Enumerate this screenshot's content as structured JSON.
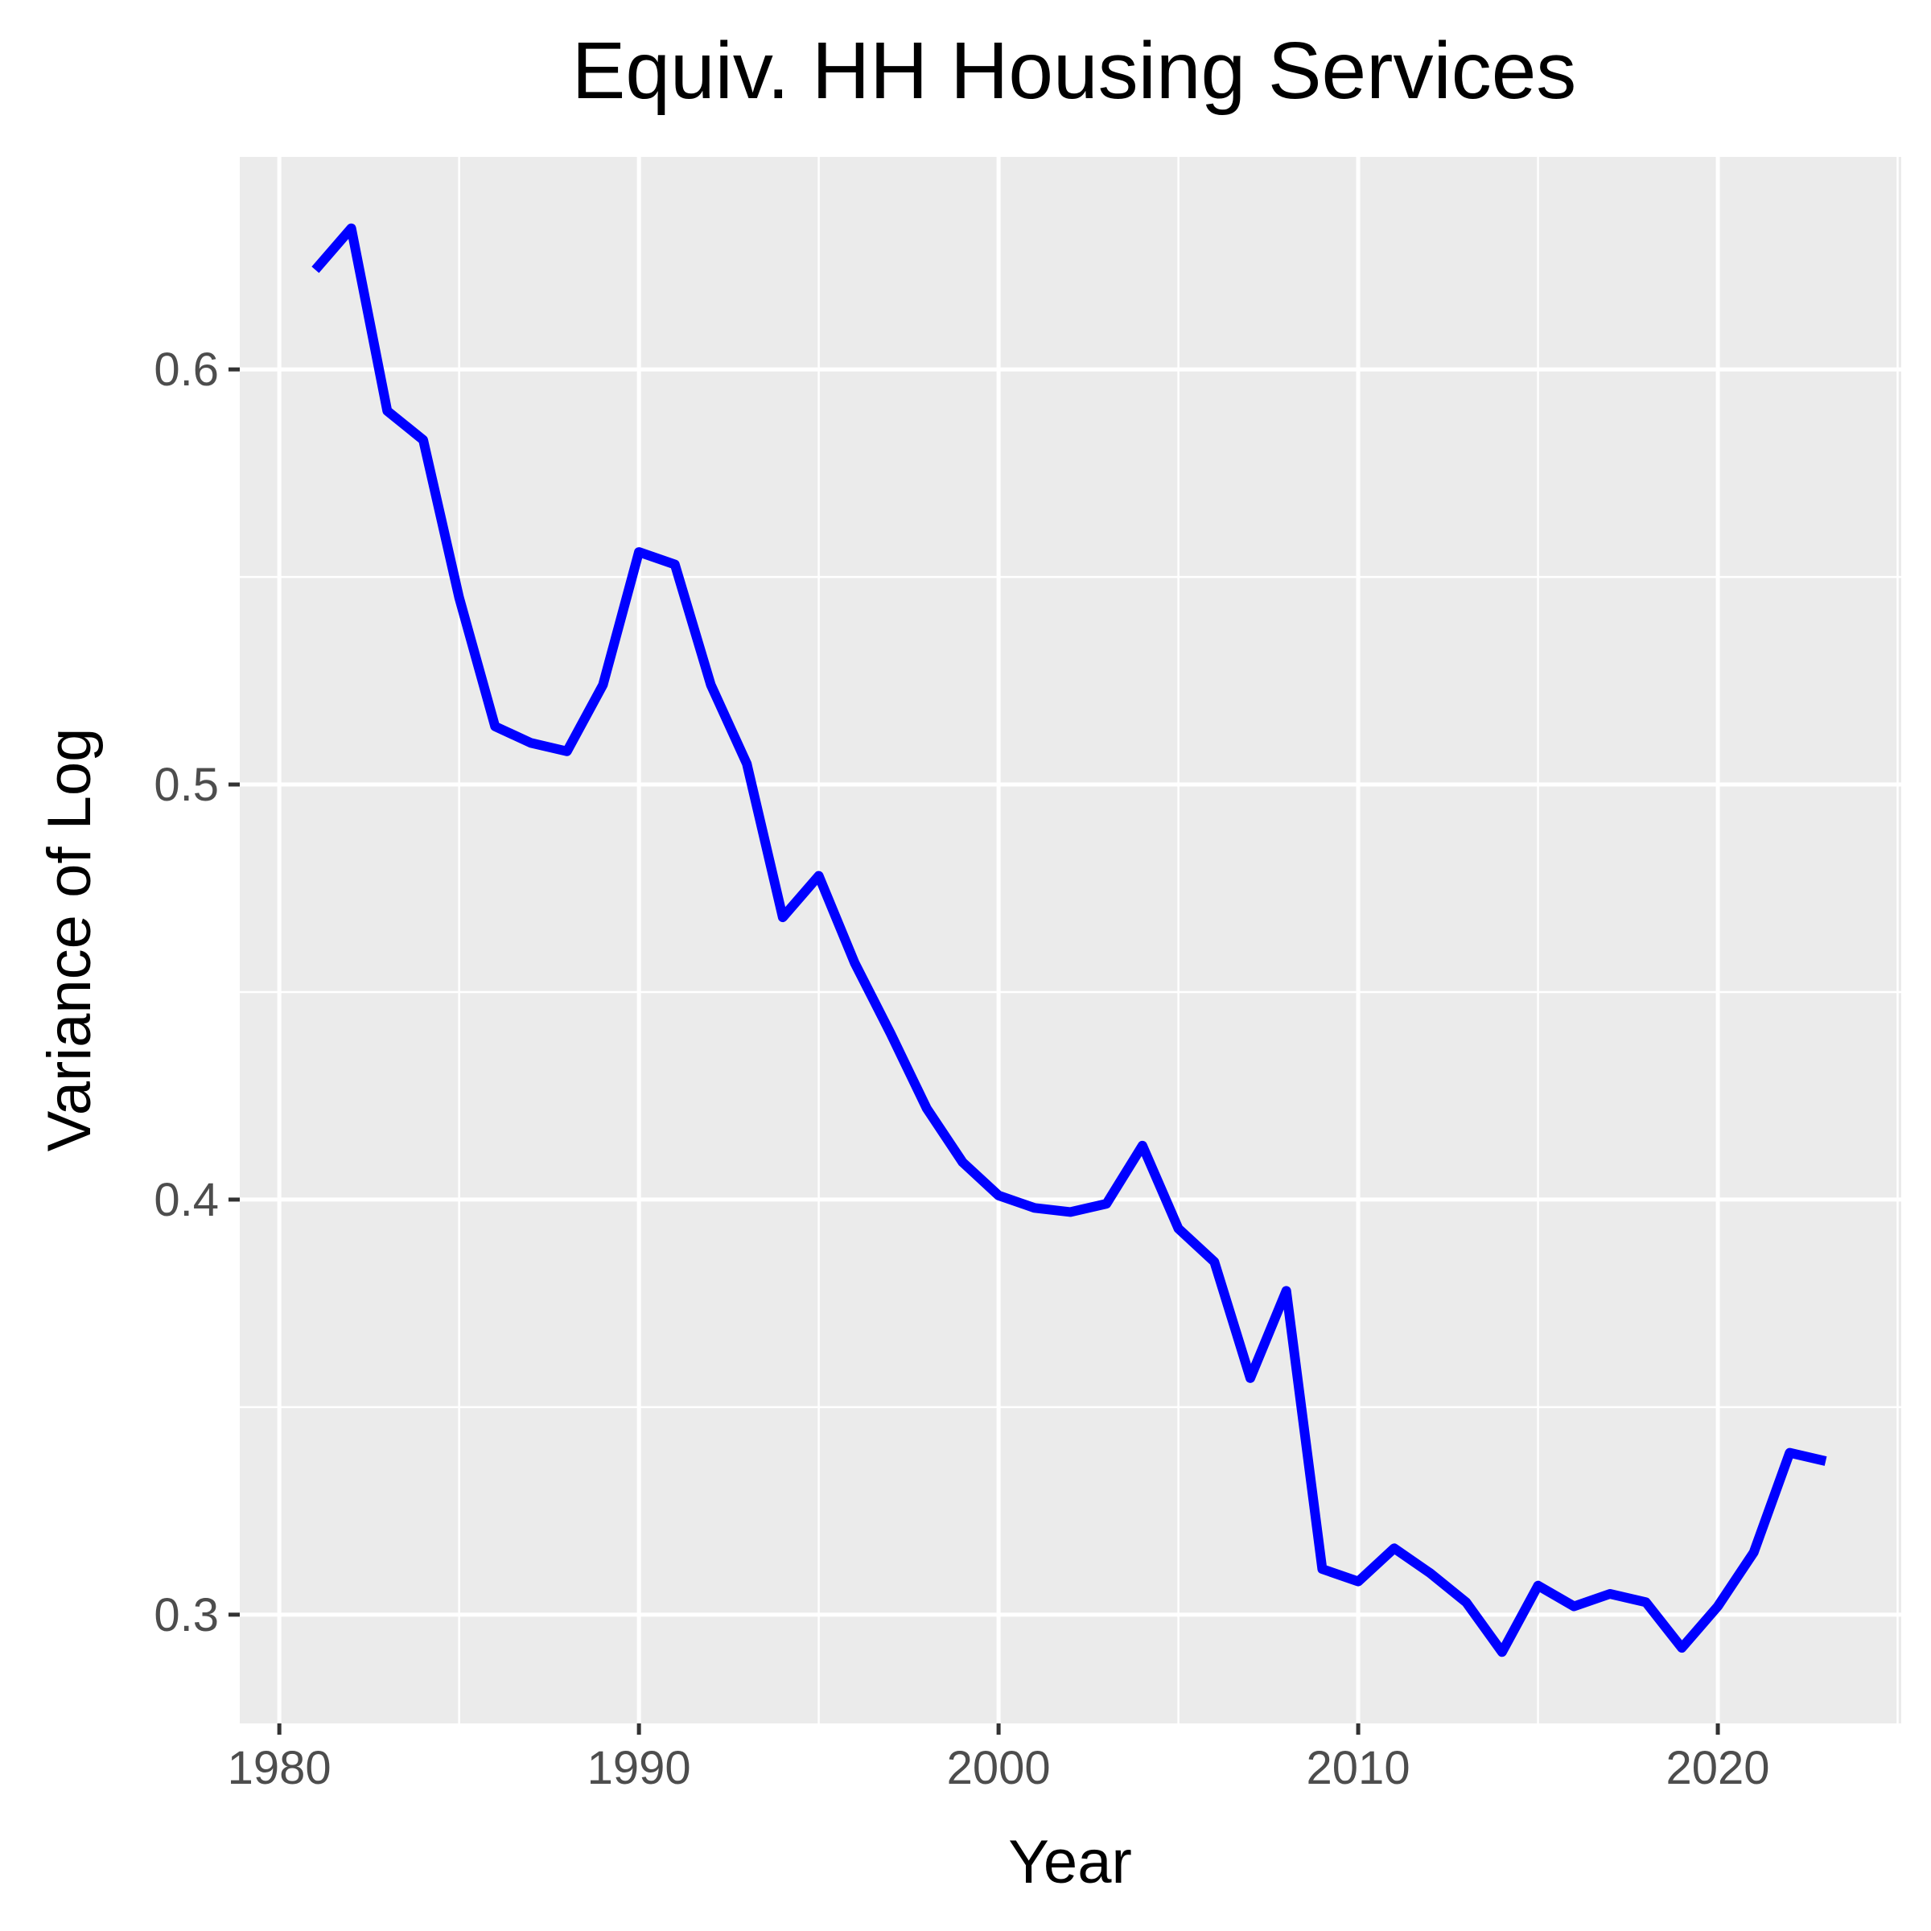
{
  "chart_data": {
    "type": "line",
    "title": "Equiv. HH Housing Services",
    "xlabel": "Year",
    "ylabel": "Variance of Log",
    "xlim": [
      1978.9,
      2025.1
    ],
    "ylim": [
      0.2738,
      0.6512
    ],
    "x_ticks": [
      1980,
      1990,
      2000,
      2010,
      2020
    ],
    "x_tick_labels": [
      "1980",
      "1990",
      "2000",
      "2010",
      "2020"
    ],
    "x_minor_ticks": [
      1985,
      1995,
      2005,
      2015,
      2025
    ],
    "y_ticks": [
      0.3,
      0.4,
      0.5,
      0.6
    ],
    "y_tick_labels": [
      "0.3",
      "0.4",
      "0.5",
      "0.6"
    ],
    "y_minor_ticks": [
      0.35,
      0.45,
      0.55
    ],
    "grid": true,
    "series": [
      {
        "color": "#0000ff",
        "x": [
          1981,
          1982,
          1983,
          1984,
          1985,
          1986,
          1987,
          1988,
          1989,
          1990,
          1991,
          1992,
          1993,
          1994,
          1995,
          1996,
          1997,
          1998,
          1999,
          2000,
          2001,
          2002,
          2003,
          2004,
          2005,
          2006,
          2007,
          2008,
          2009,
          2010,
          2011,
          2012,
          2013,
          2014,
          2015,
          2016,
          2017,
          2018,
          2019,
          2020,
          2021,
          2022,
          2023
        ],
        "values": [
          0.624,
          0.634,
          0.59,
          0.583,
          0.545,
          0.514,
          0.51,
          0.508,
          0.524,
          0.556,
          0.553,
          0.524,
          0.505,
          0.468,
          0.478,
          0.457,
          0.44,
          0.422,
          0.409,
          0.401,
          0.398,
          0.397,
          0.399,
          0.413,
          0.393,
          0.385,
          0.357,
          0.378,
          0.311,
          0.308,
          0.316,
          0.31,
          0.303,
          0.291,
          0.307,
          0.302,
          0.305,
          0.303,
          0.292,
          0.302,
          0.315,
          0.339,
          0.337
        ]
      }
    ]
  }
}
